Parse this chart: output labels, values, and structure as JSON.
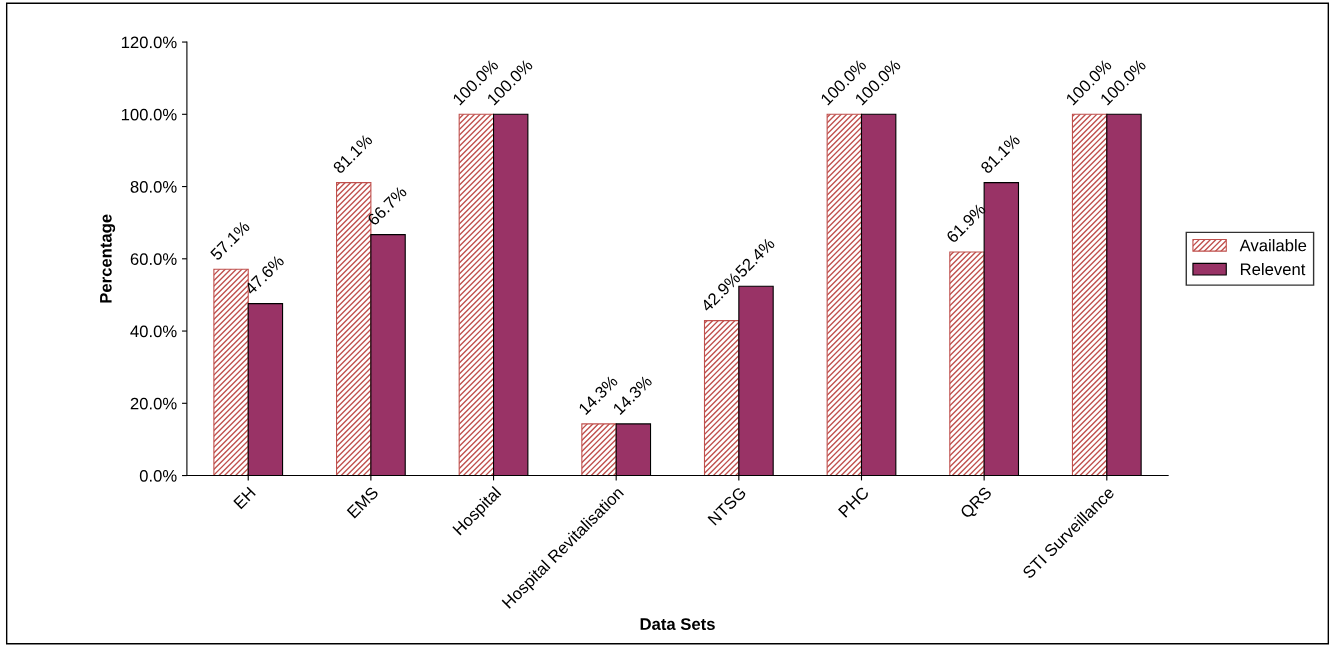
{
  "chart_data": {
    "type": "bar",
    "xlabel": "Data Sets",
    "ylabel": "Percentage",
    "categories": [
      "EH",
      "EMS",
      "Hospital",
      "Hospital Revitalisation",
      "NTSG",
      "PHC",
      "QRS",
      "STI Surveillance"
    ],
    "series": [
      {
        "name": "Available",
        "color": "#c0504d",
        "values": [
          57.1,
          81.1,
          100.0,
          14.3,
          42.9,
          100.0,
          61.9,
          100.0
        ],
        "value_labels": [
          "57.1%",
          "81.1%",
          "100.0%",
          "14.3%",
          "42.9%",
          "100.0%",
          "61.9%",
          "100.0%"
        ]
      },
      {
        "name": "Relevent",
        "color": "#993366",
        "values": [
          47.6,
          66.7,
          100.0,
          14.3,
          52.4,
          100.0,
          81.1,
          100.0
        ],
        "value_labels": [
          "47.6%",
          "66.7%",
          "100.0%",
          "14.3%",
          "52.4%",
          "100.0%",
          "81.1%",
          "100.0%"
        ]
      }
    ],
    "ylim": [
      0,
      120
    ],
    "yticks": [
      {
        "value": 0,
        "label": "0.0%"
      },
      {
        "value": 20,
        "label": "20.0%"
      },
      {
        "value": 40,
        "label": "40.0%"
      },
      {
        "value": 60,
        "label": "60.0%"
      },
      {
        "value": 80,
        "label": "80.0%"
      },
      {
        "value": 100,
        "label": "100.0%"
      },
      {
        "value": 120,
        "label": "120.0%"
      }
    ],
    "grid": false,
    "legend": "right"
  }
}
